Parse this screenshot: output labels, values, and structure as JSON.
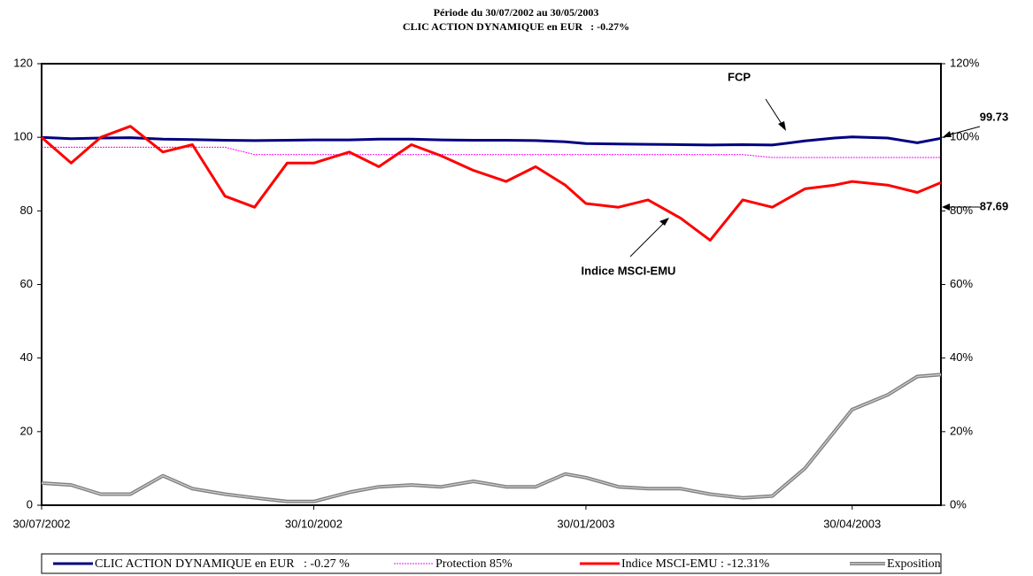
{
  "chart_data": {
    "type": "line",
    "title": "Période du 30/07/2002 au 30/05/2003",
    "subtitle": "CLIC ACTION DYNAMIQUE en EUR   : -0.27%",
    "x": [
      "2002-07-30",
      "2002-08-09",
      "2002-08-19",
      "2002-08-29",
      "2002-09-09",
      "2002-09-19",
      "2002-09-30",
      "2002-10-10",
      "2002-10-21",
      "2002-10-30",
      "2002-11-11",
      "2002-11-21",
      "2002-12-02",
      "2002-12-12",
      "2002-12-23",
      "2003-01-03",
      "2003-01-13",
      "2003-01-23",
      "2003-01-30",
      "2003-02-10",
      "2003-02-20",
      "2003-03-03",
      "2003-03-13",
      "2003-03-24",
      "2003-04-03",
      "2003-04-14",
      "2003-04-24",
      "2003-04-30",
      "2003-05-12",
      "2003-05-22",
      "2003-05-30"
    ],
    "xlim": [
      "2002-07-30",
      "2003-05-30"
    ],
    "xticks": [
      {
        "value": "2002-07-30",
        "label": "30/07/2002"
      },
      {
        "value": "2002-10-30",
        "label": "30/10/2002"
      },
      {
        "value": "2003-01-30",
        "label": "30/01/2003"
      },
      {
        "value": "2003-04-30",
        "label": "30/04/2003"
      }
    ],
    "ylim": [
      0,
      120
    ],
    "yticks": [
      0,
      20,
      40,
      60,
      80,
      100,
      120
    ],
    "y2lim": [
      0,
      120
    ],
    "y2ticks": [
      {
        "value": 0,
        "label": "0%"
      },
      {
        "value": 20,
        "label": "20%"
      },
      {
        "value": 40,
        "label": "40%"
      },
      {
        "value": 60,
        "label": "60%"
      },
      {
        "value": 80,
        "label": "80%"
      },
      {
        "value": 100,
        "label": "100%"
      },
      {
        "value": 120,
        "label": "120%"
      }
    ],
    "series": [
      {
        "name": "CLIC ACTION DYNAMIQUE en EUR   : -0.27 %",
        "color": "#000080",
        "style": "solid",
        "values": [
          100,
          99.6,
          99.8,
          99.9,
          99.5,
          99.4,
          99.2,
          99.1,
          99.2,
          99.3,
          99.3,
          99.5,
          99.5,
          99.3,
          99.2,
          99.2,
          99.1,
          98.8,
          98.3,
          98.2,
          98.1,
          98.0,
          97.9,
          98.0,
          97.9,
          99.0,
          99.8,
          100.1,
          99.8,
          98.5,
          99.73
        ]
      },
      {
        "name": "Protection 85%",
        "color": "#ff00ff",
        "style": "dotted",
        "values": [
          97.3,
          97.3,
          97.3,
          97.3,
          97.3,
          97.3,
          97.3,
          95.3,
          95.3,
          95.3,
          95.3,
          95.3,
          95.3,
          95.3,
          95.3,
          95.3,
          95.3,
          95.3,
          95.3,
          95.3,
          95.3,
          95.3,
          95.3,
          95.3,
          94.5,
          94.5,
          94.5,
          94.5,
          94.5,
          94.5,
          94.5
        ]
      },
      {
        "name": "Indice MSCI-EMU : -12.31%",
        "color": "#ff0000",
        "style": "solid",
        "values": [
          100,
          93,
          100,
          103,
          96,
          98,
          84,
          81,
          93,
          93,
          96,
          92,
          98,
          95,
          91,
          88,
          92,
          87,
          82,
          81,
          83,
          78,
          72,
          83,
          81,
          86,
          87,
          88,
          87,
          85,
          87.69
        ]
      },
      {
        "name": "Exposition",
        "color": "#808080",
        "style": "double",
        "values": [
          6,
          5.5,
          3,
          3,
          8,
          4.5,
          3,
          2,
          1,
          1,
          3.5,
          5,
          5.5,
          5,
          6.5,
          5,
          5,
          8.5,
          7.5,
          5,
          4.5,
          4.5,
          3,
          2,
          2.5,
          10,
          20,
          26,
          30,
          35,
          35.5
        ]
      }
    ],
    "annotations": [
      "FCP",
      "Indice MSCI-EMU",
      "99.73",
      "87.69"
    ]
  }
}
